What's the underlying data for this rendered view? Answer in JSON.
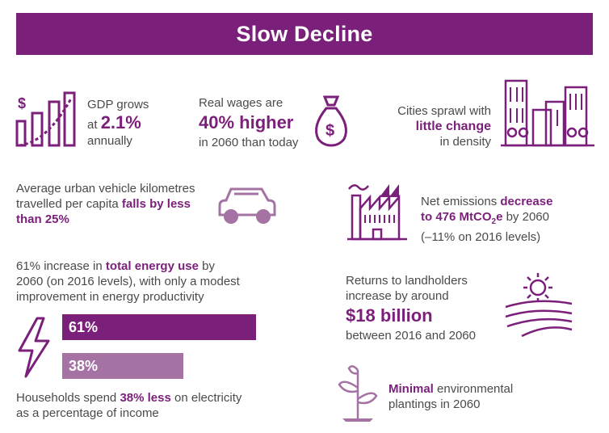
{
  "colors": {
    "primary": "#7a1f7a",
    "secondary": "#a473a4",
    "text": "#4a4a4a"
  },
  "title": "Slow Decline",
  "gdp": {
    "pre": "GDP grows",
    "at": "at",
    "value": "2.1%",
    "post": "annually",
    "icon": "dollar-bar-chart-icon"
  },
  "wages": {
    "pre": "Real wages are",
    "value": "40% higher",
    "post": "in 2060 than today",
    "icon": "money-bag-icon"
  },
  "cities": {
    "pre": "Cities sprawl with",
    "value": "little change",
    "post": "in density",
    "icon": "city-skyline-icon"
  },
  "vehicle": {
    "line1": "Average urban vehicle kilometres",
    "line2_pre": "travelled per capita",
    "line2_hl": "falls by less",
    "line3_hl": "than 25%",
    "icon": "car-icon"
  },
  "emissions": {
    "pre": "Net emissions",
    "hl1": "decrease",
    "hl2": "to 476 MtCO",
    "sub": "2",
    "hl3": "e",
    "post": "by 2060",
    "line3": "(–11% on 2016 levels)",
    "icon": "factory-icon"
  },
  "energy": {
    "line1_pre": "61% increase in",
    "line1_hl": "total energy use",
    "line1_post": "by",
    "line2": "2060 (on 2016 levels), with only a modest",
    "line3": "improvement in energy productivity",
    "icon": "lightning-bolt-icon"
  },
  "bars": [
    {
      "label": "61%",
      "value": 61
    },
    {
      "label": "38%",
      "value": 38
    }
  ],
  "households": {
    "pre": "Households spend",
    "hl": "38% less",
    "post": "on electricity",
    "line2": "as a percentage of income"
  },
  "landholders": {
    "line1": "Returns to landholders",
    "line2": "increase by around",
    "value": "$18 billion",
    "line4": "between 2016 and 2060",
    "icon": "sun-over-fields-icon"
  },
  "plantings": {
    "hl": "Minimal",
    "post": "environmental",
    "line2": "plantings in 2060",
    "icon": "seedling-icon"
  }
}
